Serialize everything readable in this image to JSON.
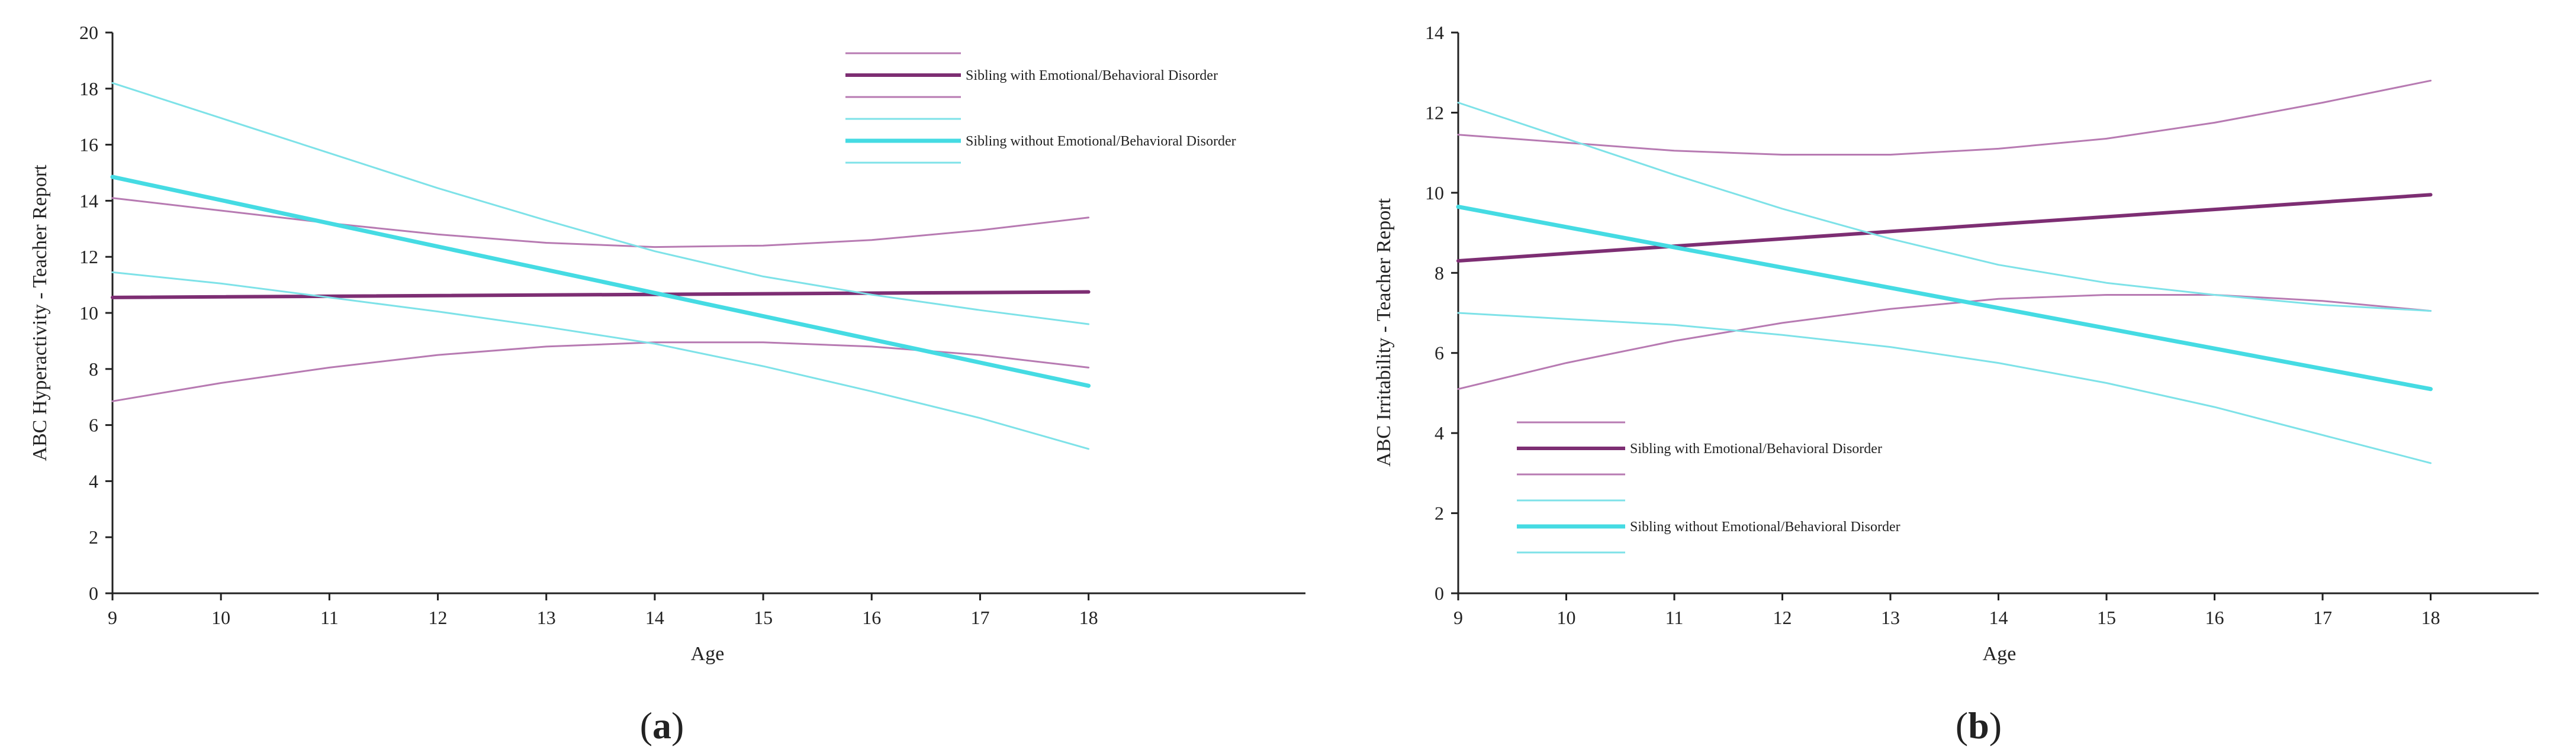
{
  "colors": {
    "with_mean": "#7d2e73",
    "with_ci": "#b77ab2",
    "without_mean": "#45dbe3",
    "without_ci": "#7ee2e8",
    "axis": "#222222"
  },
  "chart_data": [
    {
      "type": "line",
      "panel_label": "a",
      "xlabel": "Age",
      "ylabel": "ABC Hyperactivity - Teacher Report",
      "xlim": [
        9,
        20
      ],
      "ylim": [
        0,
        20
      ],
      "x_ticks": [
        9,
        10,
        11,
        12,
        13,
        14,
        15,
        16,
        17,
        18
      ],
      "y_ticks": [
        0,
        2,
        4,
        6,
        8,
        10,
        12,
        14,
        16,
        18,
        20
      ],
      "legend_position": "top-right",
      "legend": [
        {
          "label": "",
          "style": "with_ci"
        },
        {
          "label": "Sibling with Emotional/Behavioral Disorder",
          "style": "with_mean"
        },
        {
          "label": "",
          "style": "with_ci"
        },
        {
          "label": "",
          "style": "without_ci"
        },
        {
          "label": "Sibling without Emotional/Behavioral Disorder",
          "style": "without_mean"
        },
        {
          "label": "",
          "style": "without_ci"
        }
      ],
      "series": [
        {
          "name": "Sibling with Emotional/Behavioral Disorder (upper CI)",
          "style": "with_ci",
          "x": [
            9,
            10,
            11,
            12,
            13,
            14,
            15,
            16,
            17,
            18
          ],
          "y": [
            14.1,
            13.65,
            13.2,
            12.8,
            12.5,
            12.35,
            12.4,
            12.6,
            12.95,
            13.4
          ]
        },
        {
          "name": "Sibling with Emotional/Behavioral Disorder",
          "style": "with_mean",
          "x": [
            9,
            18
          ],
          "y": [
            10.55,
            10.75
          ]
        },
        {
          "name": "Sibling with Emotional/Behavioral Disorder (lower CI)",
          "style": "with_ci",
          "x": [
            9,
            10,
            11,
            12,
            13,
            14,
            15,
            16,
            17,
            18
          ],
          "y": [
            6.85,
            7.5,
            8.05,
            8.5,
            8.8,
            8.95,
            8.95,
            8.8,
            8.5,
            8.05
          ]
        },
        {
          "name": "Sibling without Emotional/Behavioral Disorder (upper CI)",
          "style": "without_ci",
          "x": [
            9,
            10,
            11,
            12,
            13,
            14,
            15,
            16,
            17,
            18
          ],
          "y": [
            18.2,
            16.95,
            15.7,
            14.45,
            13.3,
            12.2,
            11.3,
            10.65,
            10.1,
            9.6
          ]
        },
        {
          "name": "Sibling without Emotional/Behavioral Disorder",
          "style": "without_mean",
          "x": [
            9,
            18
          ],
          "y": [
            14.85,
            7.4
          ]
        },
        {
          "name": "Sibling without Emotional/Behavioral Disorder (lower CI)",
          "style": "without_ci",
          "x": [
            9,
            10,
            11,
            12,
            13,
            14,
            15,
            16,
            17,
            18
          ],
          "y": [
            11.45,
            11.05,
            10.55,
            10.05,
            9.5,
            8.9,
            8.1,
            7.2,
            6.25,
            5.15
          ]
        }
      ]
    },
    {
      "type": "line",
      "panel_label": "b",
      "xlabel": "Age",
      "ylabel": "ABC Irritability - Teacher Report",
      "xlim": [
        9,
        19
      ],
      "ylim": [
        0,
        14
      ],
      "x_ticks": [
        9,
        10,
        11,
        12,
        13,
        14,
        15,
        16,
        17,
        18
      ],
      "y_ticks": [
        0,
        2,
        4,
        6,
        8,
        10,
        12,
        14
      ],
      "legend_position": "bottom-left",
      "legend": [
        {
          "label": "",
          "style": "with_ci"
        },
        {
          "label": "Sibling with Emotional/Behavioral Disorder",
          "style": "with_mean"
        },
        {
          "label": "",
          "style": "with_ci"
        },
        {
          "label": "",
          "style": "without_ci"
        },
        {
          "label": "Sibling without Emotional/Behavioral Disorder",
          "style": "without_mean"
        },
        {
          "label": "",
          "style": "without_ci"
        }
      ],
      "series": [
        {
          "name": "Sibling with Emotional/Behavioral Disorder (upper CI)",
          "style": "with_ci",
          "x": [
            9,
            10,
            11,
            12,
            13,
            14,
            15,
            16,
            17,
            18
          ],
          "y": [
            11.45,
            11.25,
            11.05,
            10.95,
            10.95,
            11.1,
            11.35,
            11.75,
            12.25,
            12.8
          ]
        },
        {
          "name": "Sibling with Emotional/Behavioral Disorder",
          "style": "with_mean",
          "x": [
            9,
            18
          ],
          "y": [
            8.3,
            9.95
          ]
        },
        {
          "name": "Sibling with Emotional/Behavioral Disorder (lower CI)",
          "style": "with_ci",
          "x": [
            9,
            10,
            11,
            12,
            13,
            14,
            15,
            16,
            17,
            18
          ],
          "y": [
            5.1,
            5.75,
            6.3,
            6.75,
            7.1,
            7.35,
            7.45,
            7.45,
            7.3,
            7.05
          ]
        },
        {
          "name": "Sibling without Emotional/Behavioral Disorder (upper CI)",
          "style": "without_ci",
          "x": [
            9,
            10,
            11,
            12,
            13,
            14,
            15,
            16,
            17,
            18
          ],
          "y": [
            12.25,
            11.35,
            10.45,
            9.6,
            8.85,
            8.2,
            7.75,
            7.45,
            7.2,
            7.05
          ]
        },
        {
          "name": "Sibling without Emotional/Behavioral Disorder",
          "style": "without_mean",
          "x": [
            9,
            18
          ],
          "y": [
            9.65,
            5.1
          ]
        },
        {
          "name": "Sibling without Emotional/Behavioral Disorder (lower CI)",
          "style": "without_ci",
          "x": [
            9,
            10,
            11,
            12,
            13,
            14,
            15,
            16,
            17,
            18
          ],
          "y": [
            7.0,
            6.85,
            6.7,
            6.45,
            6.15,
            5.75,
            5.25,
            4.65,
            3.95,
            3.25
          ]
        }
      ]
    }
  ]
}
